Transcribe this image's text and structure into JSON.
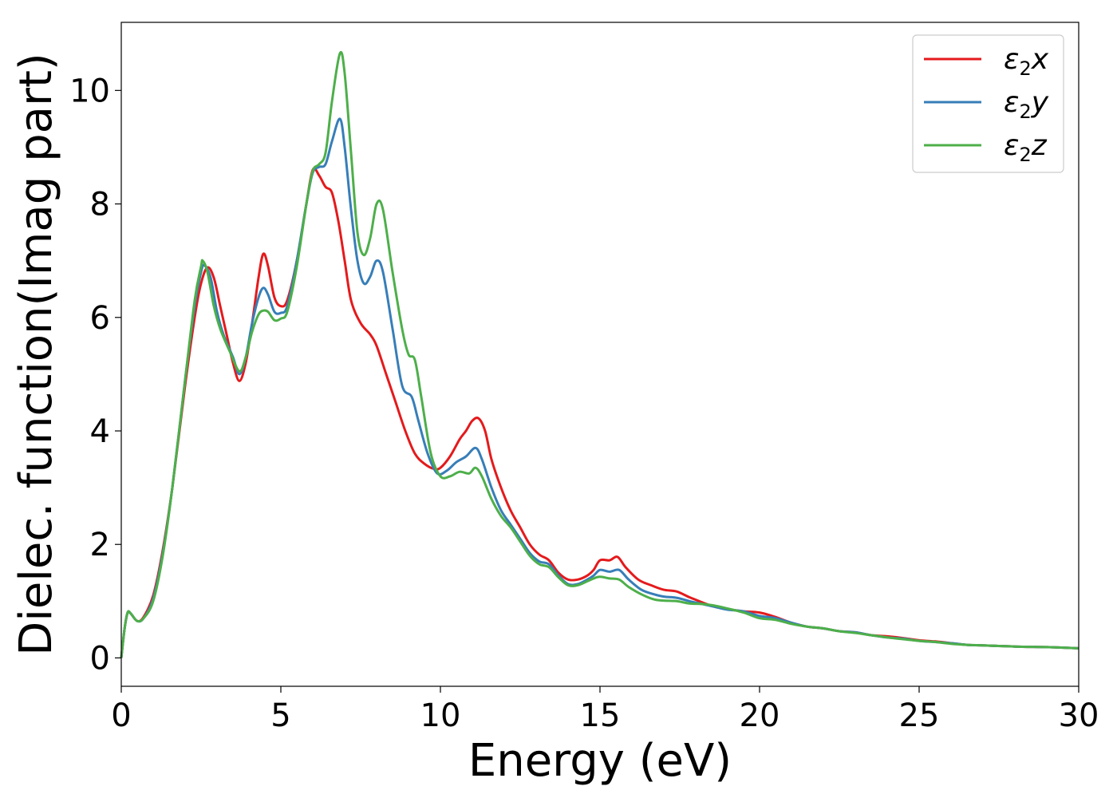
{
  "chart_data": {
    "type": "line",
    "title": "",
    "xlabel": "Energy (eV)",
    "ylabel": "Dielec. function(Imag part)",
    "xlim": [
      0,
      30
    ],
    "ylim": [
      -0.5,
      11.2
    ],
    "xticks": [
      0,
      5,
      10,
      15,
      20,
      25,
      30
    ],
    "yticks": [
      0,
      2,
      4,
      6,
      8,
      10
    ],
    "grid": false,
    "legend_position": "top-right",
    "series": [
      {
        "name": "ε2x",
        "legend_base": "ε",
        "legend_sub": "2",
        "legend_tail": "x",
        "color": "#e41a1c",
        "points": [
          [
            0,
            0
          ],
          [
            0.1,
            0.5
          ],
          [
            0.2,
            0.8
          ],
          [
            0.3,
            0.78
          ],
          [
            0.5,
            0.65
          ],
          [
            0.7,
            0.72
          ],
          [
            1.0,
            1.1
          ],
          [
            1.3,
            1.9
          ],
          [
            1.6,
            3.0
          ],
          [
            2.0,
            4.8
          ],
          [
            2.3,
            6.0
          ],
          [
            2.5,
            6.6
          ],
          [
            2.7,
            6.88
          ],
          [
            2.9,
            6.7
          ],
          [
            3.1,
            6.2
          ],
          [
            3.3,
            5.7
          ],
          [
            3.5,
            5.2
          ],
          [
            3.7,
            4.88
          ],
          [
            3.9,
            5.2
          ],
          [
            4.1,
            5.9
          ],
          [
            4.3,
            6.7
          ],
          [
            4.45,
            7.12
          ],
          [
            4.6,
            6.9
          ],
          [
            4.8,
            6.35
          ],
          [
            5.0,
            6.2
          ],
          [
            5.2,
            6.3
          ],
          [
            5.5,
            7.0
          ],
          [
            5.8,
            8.0
          ],
          [
            6.0,
            8.6
          ],
          [
            6.2,
            8.5
          ],
          [
            6.4,
            8.3
          ],
          [
            6.6,
            8.2
          ],
          [
            6.8,
            7.7
          ],
          [
            7.0,
            7.0
          ],
          [
            7.2,
            6.3
          ],
          [
            7.5,
            5.9
          ],
          [
            7.8,
            5.7
          ],
          [
            8.0,
            5.5
          ],
          [
            8.3,
            5.0
          ],
          [
            8.6,
            4.5
          ],
          [
            8.9,
            4.0
          ],
          [
            9.2,
            3.6
          ],
          [
            9.5,
            3.42
          ],
          [
            9.8,
            3.33
          ],
          [
            10.0,
            3.35
          ],
          [
            10.3,
            3.55
          ],
          [
            10.6,
            3.85
          ],
          [
            10.8,
            4.0
          ],
          [
            11.0,
            4.18
          ],
          [
            11.2,
            4.22
          ],
          [
            11.4,
            4.0
          ],
          [
            11.6,
            3.5
          ],
          [
            11.9,
            3.0
          ],
          [
            12.2,
            2.6
          ],
          [
            12.5,
            2.3
          ],
          [
            12.8,
            2.0
          ],
          [
            13.1,
            1.82
          ],
          [
            13.4,
            1.72
          ],
          [
            13.7,
            1.5
          ],
          [
            14.0,
            1.38
          ],
          [
            14.3,
            1.38
          ],
          [
            14.6,
            1.45
          ],
          [
            14.8,
            1.55
          ],
          [
            15.0,
            1.72
          ],
          [
            15.3,
            1.72
          ],
          [
            15.55,
            1.78
          ],
          [
            15.8,
            1.6
          ],
          [
            16.2,
            1.38
          ],
          [
            16.6,
            1.28
          ],
          [
            17.0,
            1.2
          ],
          [
            17.4,
            1.17
          ],
          [
            17.8,
            1.07
          ],
          [
            18.2,
            0.98
          ],
          [
            18.6,
            0.9
          ],
          [
            19.0,
            0.86
          ],
          [
            19.5,
            0.82
          ],
          [
            20.0,
            0.8
          ],
          [
            20.5,
            0.72
          ],
          [
            21.0,
            0.62
          ],
          [
            21.5,
            0.55
          ],
          [
            22.0,
            0.52
          ],
          [
            22.5,
            0.47
          ],
          [
            23.0,
            0.45
          ],
          [
            23.5,
            0.4
          ],
          [
            24.0,
            0.38
          ],
          [
            24.5,
            0.35
          ],
          [
            25.0,
            0.31
          ],
          [
            25.5,
            0.29
          ],
          [
            26.0,
            0.26
          ],
          [
            26.5,
            0.23
          ],
          [
            27.0,
            0.22
          ],
          [
            28.0,
            0.2
          ],
          [
            29.0,
            0.19
          ],
          [
            30.0,
            0.17
          ]
        ]
      },
      {
        "name": "ε2y",
        "legend_base": "ε",
        "legend_sub": "2",
        "legend_tail": "y",
        "color": "#377eb8",
        "points": [
          [
            0,
            0
          ],
          [
            0.1,
            0.5
          ],
          [
            0.2,
            0.8
          ],
          [
            0.3,
            0.78
          ],
          [
            0.5,
            0.65
          ],
          [
            0.7,
            0.7
          ],
          [
            1.0,
            1.05
          ],
          [
            1.3,
            1.85
          ],
          [
            1.6,
            3.0
          ],
          [
            2.0,
            4.9
          ],
          [
            2.3,
            6.2
          ],
          [
            2.5,
            6.8
          ],
          [
            2.6,
            6.92
          ],
          [
            2.8,
            6.7
          ],
          [
            3.0,
            6.1
          ],
          [
            3.2,
            5.7
          ],
          [
            3.5,
            5.3
          ],
          [
            3.7,
            5.0
          ],
          [
            3.9,
            5.3
          ],
          [
            4.1,
            5.9
          ],
          [
            4.3,
            6.35
          ],
          [
            4.45,
            6.52
          ],
          [
            4.6,
            6.4
          ],
          [
            4.8,
            6.1
          ],
          [
            5.0,
            6.08
          ],
          [
            5.2,
            6.2
          ],
          [
            5.5,
            7.0
          ],
          [
            5.8,
            8.0
          ],
          [
            6.0,
            8.55
          ],
          [
            6.2,
            8.65
          ],
          [
            6.4,
            8.7
          ],
          [
            6.6,
            9.1
          ],
          [
            6.85,
            9.5
          ],
          [
            7.0,
            9.0
          ],
          [
            7.2,
            7.9
          ],
          [
            7.4,
            7.0
          ],
          [
            7.6,
            6.6
          ],
          [
            7.8,
            6.72
          ],
          [
            8.0,
            7.0
          ],
          [
            8.2,
            6.8
          ],
          [
            8.5,
            5.8
          ],
          [
            8.8,
            4.8
          ],
          [
            9.1,
            4.6
          ],
          [
            9.3,
            4.2
          ],
          [
            9.6,
            3.6
          ],
          [
            9.9,
            3.25
          ],
          [
            10.2,
            3.3
          ],
          [
            10.5,
            3.45
          ],
          [
            10.8,
            3.55
          ],
          [
            11.1,
            3.7
          ],
          [
            11.3,
            3.5
          ],
          [
            11.6,
            3.0
          ],
          [
            11.9,
            2.6
          ],
          [
            12.2,
            2.35
          ],
          [
            12.5,
            2.1
          ],
          [
            12.8,
            1.85
          ],
          [
            13.1,
            1.7
          ],
          [
            13.4,
            1.65
          ],
          [
            13.7,
            1.45
          ],
          [
            14.0,
            1.3
          ],
          [
            14.3,
            1.3
          ],
          [
            14.6,
            1.38
          ],
          [
            14.8,
            1.45
          ],
          [
            15.0,
            1.55
          ],
          [
            15.3,
            1.52
          ],
          [
            15.6,
            1.55
          ],
          [
            15.9,
            1.38
          ],
          [
            16.3,
            1.2
          ],
          [
            16.7,
            1.12
          ],
          [
            17.0,
            1.08
          ],
          [
            17.4,
            1.06
          ],
          [
            17.8,
            1.0
          ],
          [
            18.2,
            0.95
          ],
          [
            18.6,
            0.9
          ],
          [
            19.0,
            0.85
          ],
          [
            19.5,
            0.82
          ],
          [
            20.0,
            0.74
          ],
          [
            20.5,
            0.7
          ],
          [
            21.0,
            0.62
          ],
          [
            21.5,
            0.55
          ],
          [
            22.0,
            0.52
          ],
          [
            22.5,
            0.47
          ],
          [
            23.0,
            0.45
          ],
          [
            23.5,
            0.4
          ],
          [
            24.0,
            0.36
          ],
          [
            24.5,
            0.34
          ],
          [
            25.0,
            0.3
          ],
          [
            25.5,
            0.28
          ],
          [
            26.0,
            0.26
          ],
          [
            26.5,
            0.23
          ],
          [
            27.0,
            0.22
          ],
          [
            28.0,
            0.2
          ],
          [
            29.0,
            0.19
          ],
          [
            30.0,
            0.17
          ]
        ]
      },
      {
        "name": "ε2z",
        "legend_base": "ε",
        "legend_sub": "2",
        "legend_tail": "z",
        "color": "#4daf4a",
        "points": [
          [
            0,
            0
          ],
          [
            0.1,
            0.5
          ],
          [
            0.2,
            0.8
          ],
          [
            0.3,
            0.78
          ],
          [
            0.5,
            0.65
          ],
          [
            0.7,
            0.7
          ],
          [
            1.0,
            1.0
          ],
          [
            1.3,
            1.8
          ],
          [
            1.6,
            3.0
          ],
          [
            2.0,
            4.9
          ],
          [
            2.3,
            6.3
          ],
          [
            2.5,
            6.9
          ],
          [
            2.55,
            7.0
          ],
          [
            2.7,
            6.8
          ],
          [
            2.9,
            6.2
          ],
          [
            3.1,
            5.8
          ],
          [
            3.4,
            5.4
          ],
          [
            3.7,
            5.05
          ],
          [
            3.9,
            5.3
          ],
          [
            4.1,
            5.75
          ],
          [
            4.3,
            6.05
          ],
          [
            4.45,
            6.12
          ],
          [
            4.6,
            6.1
          ],
          [
            4.8,
            5.95
          ],
          [
            5.0,
            5.98
          ],
          [
            5.2,
            6.1
          ],
          [
            5.5,
            6.9
          ],
          [
            5.8,
            8.0
          ],
          [
            6.0,
            8.58
          ],
          [
            6.2,
            8.7
          ],
          [
            6.4,
            8.9
          ],
          [
            6.6,
            9.8
          ],
          [
            6.85,
            10.65
          ],
          [
            7.0,
            10.3
          ],
          [
            7.2,
            8.9
          ],
          [
            7.4,
            7.5
          ],
          [
            7.6,
            7.1
          ],
          [
            7.8,
            7.4
          ],
          [
            8.0,
            8.0
          ],
          [
            8.2,
            7.9
          ],
          [
            8.5,
            6.8
          ],
          [
            8.8,
            5.8
          ],
          [
            9.0,
            5.35
          ],
          [
            9.2,
            5.25
          ],
          [
            9.4,
            4.6
          ],
          [
            9.7,
            3.6
          ],
          [
            10.0,
            3.2
          ],
          [
            10.3,
            3.2
          ],
          [
            10.6,
            3.28
          ],
          [
            10.9,
            3.25
          ],
          [
            11.1,
            3.35
          ],
          [
            11.3,
            3.2
          ],
          [
            11.6,
            2.8
          ],
          [
            11.9,
            2.5
          ],
          [
            12.2,
            2.3
          ],
          [
            12.5,
            2.05
          ],
          [
            12.8,
            1.8
          ],
          [
            13.1,
            1.65
          ],
          [
            13.4,
            1.6
          ],
          [
            13.7,
            1.42
          ],
          [
            14.0,
            1.28
          ],
          [
            14.3,
            1.28
          ],
          [
            14.6,
            1.35
          ],
          [
            14.8,
            1.4
          ],
          [
            15.0,
            1.43
          ],
          [
            15.3,
            1.4
          ],
          [
            15.6,
            1.38
          ],
          [
            15.9,
            1.25
          ],
          [
            16.3,
            1.12
          ],
          [
            16.7,
            1.03
          ],
          [
            17.0,
            1.01
          ],
          [
            17.4,
            1.0
          ],
          [
            17.8,
            0.96
          ],
          [
            18.2,
            0.95
          ],
          [
            18.6,
            0.92
          ],
          [
            19.0,
            0.87
          ],
          [
            19.5,
            0.8
          ],
          [
            20.0,
            0.7
          ],
          [
            20.5,
            0.67
          ],
          [
            21.0,
            0.6
          ],
          [
            21.5,
            0.55
          ],
          [
            22.0,
            0.52
          ],
          [
            22.5,
            0.47
          ],
          [
            23.0,
            0.44
          ],
          [
            23.5,
            0.4
          ],
          [
            24.0,
            0.36
          ],
          [
            24.5,
            0.33
          ],
          [
            25.0,
            0.3
          ],
          [
            25.5,
            0.28
          ],
          [
            26.0,
            0.25
          ],
          [
            26.5,
            0.23
          ],
          [
            27.0,
            0.22
          ],
          [
            28.0,
            0.2
          ],
          [
            29.0,
            0.19
          ],
          [
            30.0,
            0.17
          ]
        ]
      }
    ]
  }
}
